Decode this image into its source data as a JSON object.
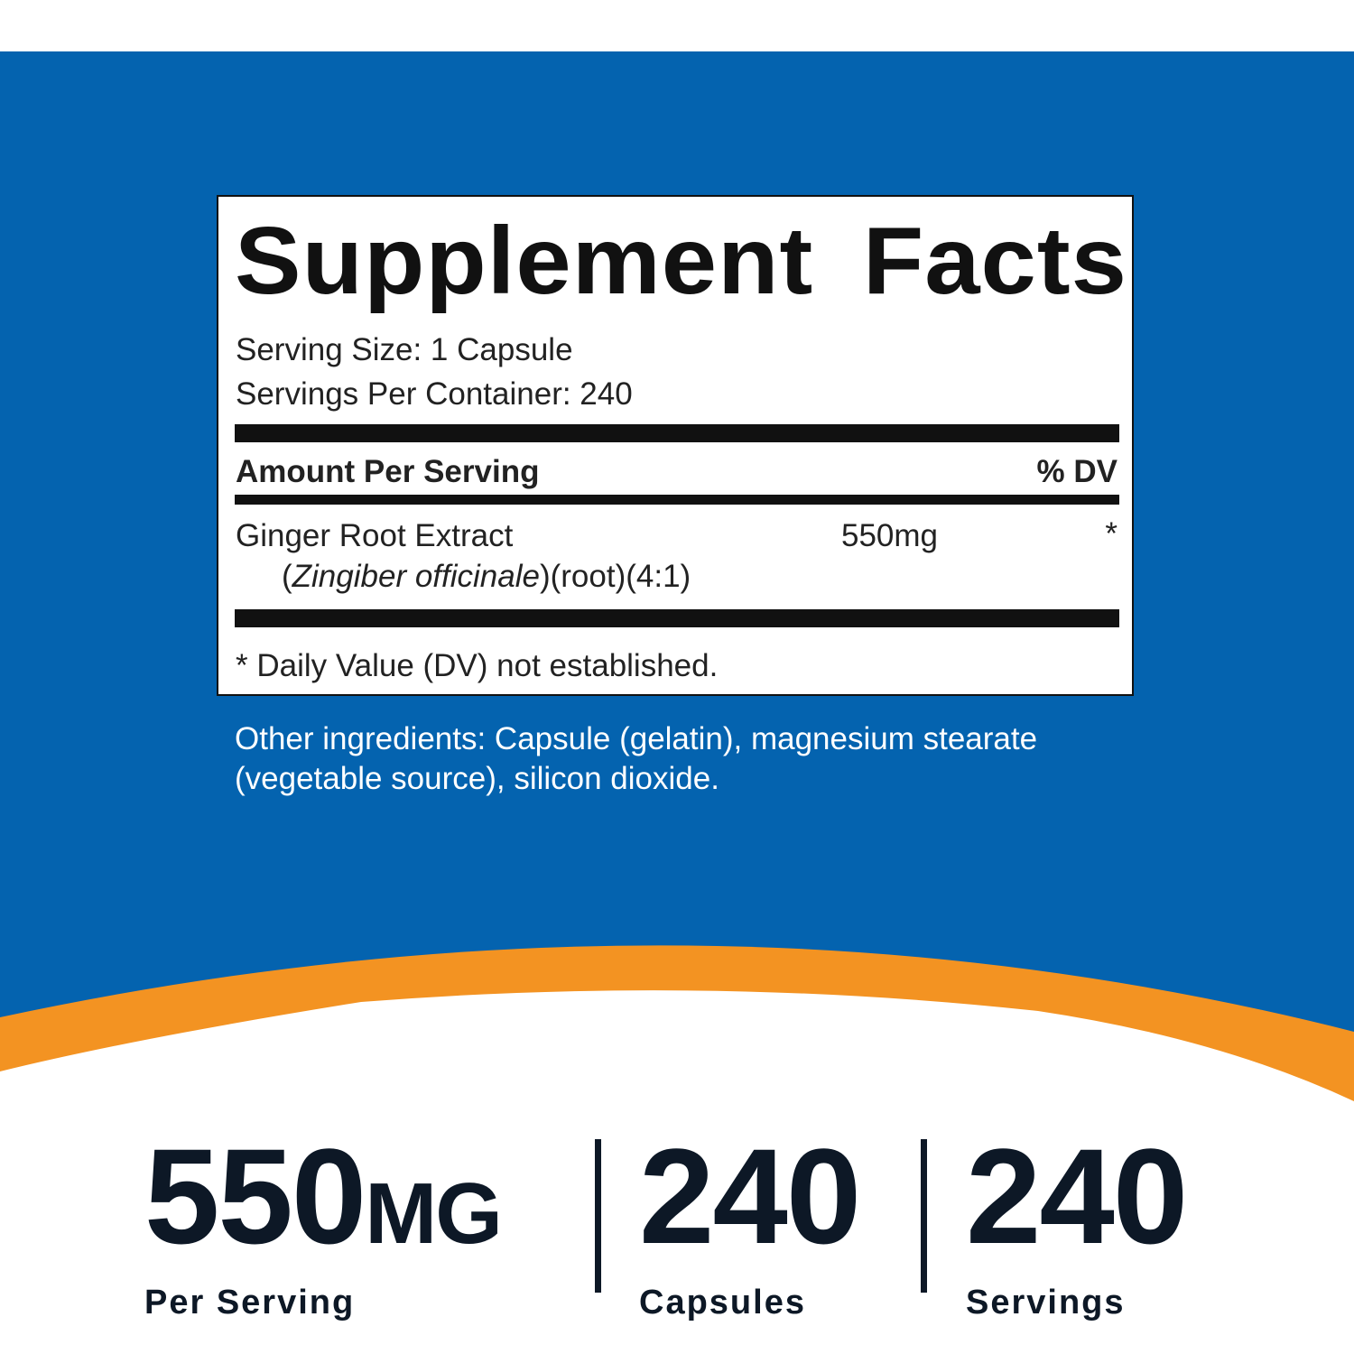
{
  "colors": {
    "brand_blue": "#0463AF",
    "accent_orange": "#F39322",
    "text_dark": "#0d1826"
  },
  "supplement_facts": {
    "title": "Supplement Facts",
    "serving_size": "Serving Size: 1 Capsule",
    "servings_per_container": "Servings Per Container: 240",
    "amount_header": "Amount Per Serving",
    "dv_header": "% DV",
    "ingredient": {
      "name": "Ginger Root Extract",
      "latin_open": "(",
      "latin": "Zingiber officinale",
      "details": ")(root)(4:1)",
      "amount": "550mg",
      "dv": "*"
    },
    "footnote": "* Daily Value (DV) not established."
  },
  "other_ingredients": "Other ingredients: Capsule (gelatin), magnesium stearate (vegetable source), silicon dioxide.",
  "stats": [
    {
      "value": "550",
      "unit": "MG",
      "label": "Per Serving"
    },
    {
      "value": "240",
      "unit": "",
      "label": "Capsules"
    },
    {
      "value": "240",
      "unit": "",
      "label": "Servings"
    }
  ]
}
